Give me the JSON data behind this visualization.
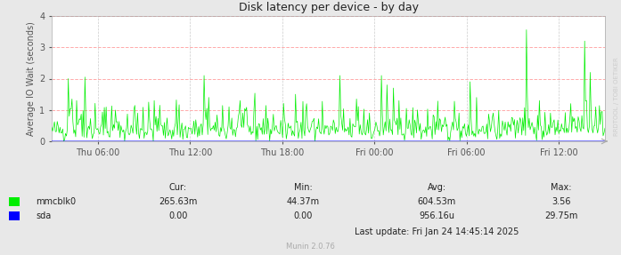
{
  "title": "Disk latency per device - by day",
  "ylabel": "Average IO Wait (seconds)",
  "bg_color": "#e8e8e8",
  "plot_bg_color": "#ffffff",
  "grid_color_h": "#ffaaaa",
  "grid_color_v": "#cccccc",
  "line_color_mmcblk0": "#00ee00",
  "line_color_sda": "#0000ff",
  "ylim": [
    0.0,
    4.0
  ],
  "yticks": [
    0.0,
    1.0,
    2.0,
    3.0,
    4.0
  ],
  "x_labels": [
    "Thu 06:00",
    "Thu 12:00",
    "Thu 18:00",
    "Fri 00:00",
    "Fri 06:00",
    "Fri 12:00"
  ],
  "col_headers": [
    "Cur:",
    "Min:",
    "Avg:",
    "Max:"
  ],
  "mmcblk0_vals": [
    "265.63m",
    "44.37m",
    "604.53m",
    "3.56"
  ],
  "sda_vals": [
    "0.00",
    "0.00",
    "956.16u",
    "29.75m"
  ],
  "last_update": "Last update: Fri Jan 24 14:45:14 2025",
  "munin_version": "Munin 2.0.76",
  "watermark": "RRDTOOL / TOBI OETIKER",
  "title_color": "#222222",
  "axis_color": "#555555",
  "footer_color": "#222222",
  "watermark_color": "#cccccc",
  "tick_color": "#555555"
}
